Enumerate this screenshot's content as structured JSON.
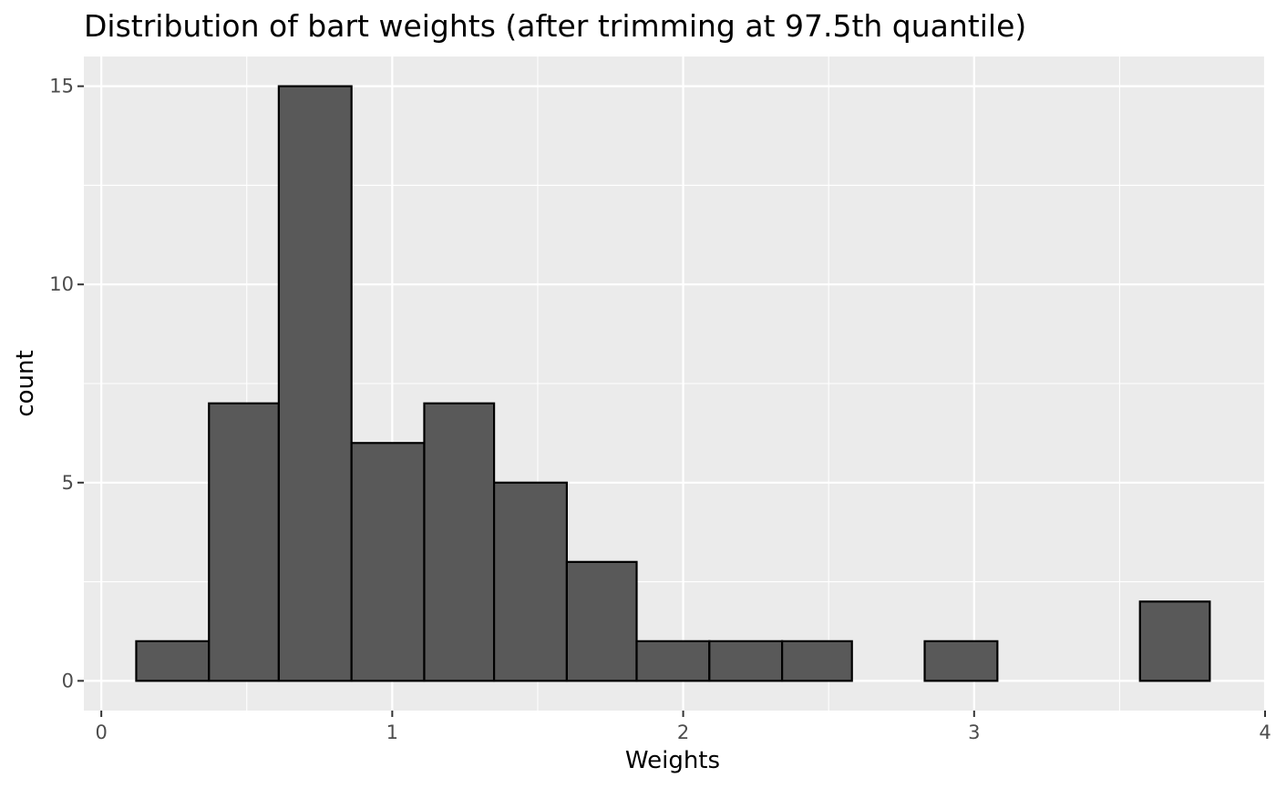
{
  "chart_data": {
    "type": "bar",
    "title": "Distribution of bart weights (after trimming at 97.5th quantile)",
    "xlabel": "Weights",
    "ylabel": "count",
    "xlim": [
      -0.06,
      4.0
    ],
    "ylim": [
      -0.75,
      15.75
    ],
    "x_ticks": [
      "0",
      "1",
      "2",
      "3",
      "4"
    ],
    "y_ticks": [
      "0",
      "5",
      "10",
      "15"
    ],
    "grid": true,
    "bins": [
      {
        "x0": 0.12,
        "x1": 0.37,
        "count": 1
      },
      {
        "x0": 0.37,
        "x1": 0.61,
        "count": 7
      },
      {
        "x0": 0.61,
        "x1": 0.86,
        "count": 15
      },
      {
        "x0": 0.86,
        "x1": 1.11,
        "count": 6
      },
      {
        "x0": 1.11,
        "x1": 1.35,
        "count": 7
      },
      {
        "x0": 1.35,
        "x1": 1.6,
        "count": 5
      },
      {
        "x0": 1.6,
        "x1": 1.84,
        "count": 3
      },
      {
        "x0": 1.84,
        "x1": 2.09,
        "count": 1
      },
      {
        "x0": 2.09,
        "x1": 2.34,
        "count": 1
      },
      {
        "x0": 2.34,
        "x1": 2.58,
        "count": 1
      },
      {
        "x0": 2.58,
        "x1": 2.83,
        "count": 0
      },
      {
        "x0": 2.83,
        "x1": 3.08,
        "count": 1
      },
      {
        "x0": 3.08,
        "x1": 3.32,
        "count": 0
      },
      {
        "x0": 3.32,
        "x1": 3.57,
        "count": 0
      },
      {
        "x0": 3.57,
        "x1": 3.81,
        "count": 2
      }
    ],
    "colors": {
      "panel_background": "#ebebeb",
      "grid_line": "#ffffff",
      "bar_fill": "#595959",
      "bar_outline": "#000000",
      "tick_label": "#4d4d4d"
    }
  }
}
